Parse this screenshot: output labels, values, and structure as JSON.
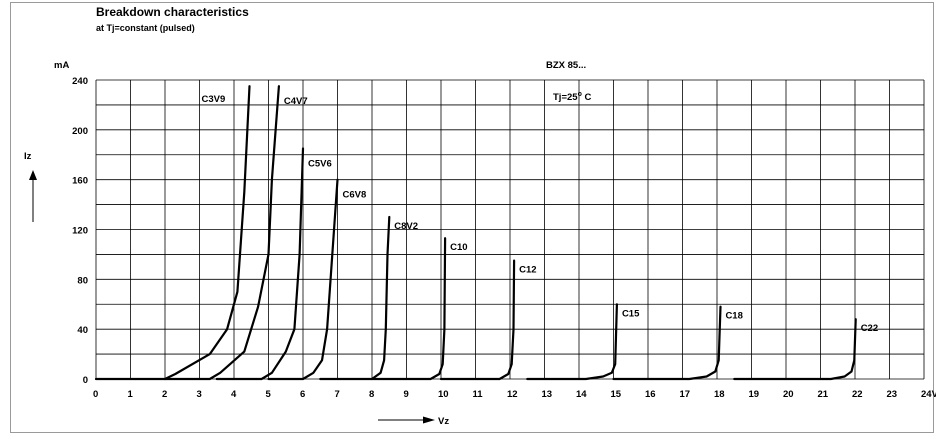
{
  "chart_data": {
    "type": "line",
    "title": "Breakdown characteristics",
    "subtitle": "at Tj=constant (pulsed)",
    "ylabel": "Iz",
    "yunit": "mA",
    "xlabel": "Vz",
    "xunit": "V",
    "xlim": [
      0,
      24
    ],
    "ylim": [
      0,
      240
    ],
    "x_ticks": [
      "0",
      "1",
      "2",
      "3",
      "4",
      "5",
      "6",
      "7",
      "8",
      "9",
      "10",
      "11",
      "12",
      "13",
      "14",
      "15",
      "16",
      "17",
      "18",
      "19",
      "20",
      "21",
      "22",
      "23",
      "24V"
    ],
    "y_ticks": [
      "0",
      "40",
      "80",
      "120",
      "160",
      "200",
      "240"
    ],
    "grid": true,
    "annotations": {
      "device": "BZX 85...",
      "temperature_prefix": "Tj=25",
      "temperature_sup": "o",
      "temperature_suffix": " C"
    },
    "series": [
      {
        "name": "C3V9",
        "points": [
          [
            0,
            0
          ],
          [
            2.0,
            0
          ],
          [
            2.3,
            4
          ],
          [
            3.3,
            20
          ],
          [
            3.8,
            40
          ],
          [
            4.1,
            70
          ],
          [
            4.3,
            150
          ],
          [
            4.45,
            235
          ]
        ]
      },
      {
        "name": "C4V7",
        "points": [
          [
            2.0,
            0
          ],
          [
            3.3,
            0
          ],
          [
            3.6,
            5
          ],
          [
            4.3,
            22
          ],
          [
            4.7,
            58
          ],
          [
            5.0,
            100
          ],
          [
            5.1,
            160
          ],
          [
            5.3,
            235
          ]
        ]
      },
      {
        "name": "C5V6",
        "points": [
          [
            3.5,
            0
          ],
          [
            4.8,
            0
          ],
          [
            5.1,
            5
          ],
          [
            5.5,
            22
          ],
          [
            5.75,
            40
          ],
          [
            5.9,
            100
          ],
          [
            6.0,
            185
          ]
        ]
      },
      {
        "name": "C6V8",
        "points": [
          [
            5.0,
            0
          ],
          [
            6.0,
            0
          ],
          [
            6.3,
            5
          ],
          [
            6.55,
            15
          ],
          [
            6.7,
            40
          ],
          [
            6.85,
            100
          ],
          [
            7.0,
            160
          ]
        ]
      },
      {
        "name": "C8V2",
        "points": [
          [
            6.5,
            0
          ],
          [
            8.0,
            0
          ],
          [
            8.25,
            5
          ],
          [
            8.35,
            15
          ],
          [
            8.4,
            40
          ],
          [
            8.45,
            100
          ],
          [
            8.5,
            130
          ]
        ]
      },
      {
        "name": "C10",
        "points": [
          [
            8.0,
            0
          ],
          [
            9.7,
            0
          ],
          [
            9.95,
            4
          ],
          [
            10.05,
            12
          ],
          [
            10.1,
            40
          ],
          [
            10.12,
            113
          ]
        ]
      },
      {
        "name": "C12",
        "points": [
          [
            10.0,
            0
          ],
          [
            11.7,
            0
          ],
          [
            11.95,
            4
          ],
          [
            12.05,
            12
          ],
          [
            12.1,
            40
          ],
          [
            12.12,
            95
          ]
        ]
      },
      {
        "name": "C15",
        "points": [
          [
            12.5,
            0
          ],
          [
            14.2,
            0
          ],
          [
            14.7,
            2
          ],
          [
            14.95,
            5
          ],
          [
            15.05,
            12
          ],
          [
            15.1,
            60
          ]
        ]
      },
      {
        "name": "C18",
        "points": [
          [
            15.0,
            0
          ],
          [
            17.2,
            0
          ],
          [
            17.7,
            2
          ],
          [
            17.95,
            6
          ],
          [
            18.05,
            15
          ],
          [
            18.1,
            58
          ]
        ]
      },
      {
        "name": "C22",
        "points": [
          [
            18.5,
            0
          ],
          [
            21.3,
            0
          ],
          [
            21.7,
            2
          ],
          [
            21.9,
            6
          ],
          [
            21.98,
            15
          ],
          [
            22.02,
            48
          ]
        ]
      }
    ]
  }
}
